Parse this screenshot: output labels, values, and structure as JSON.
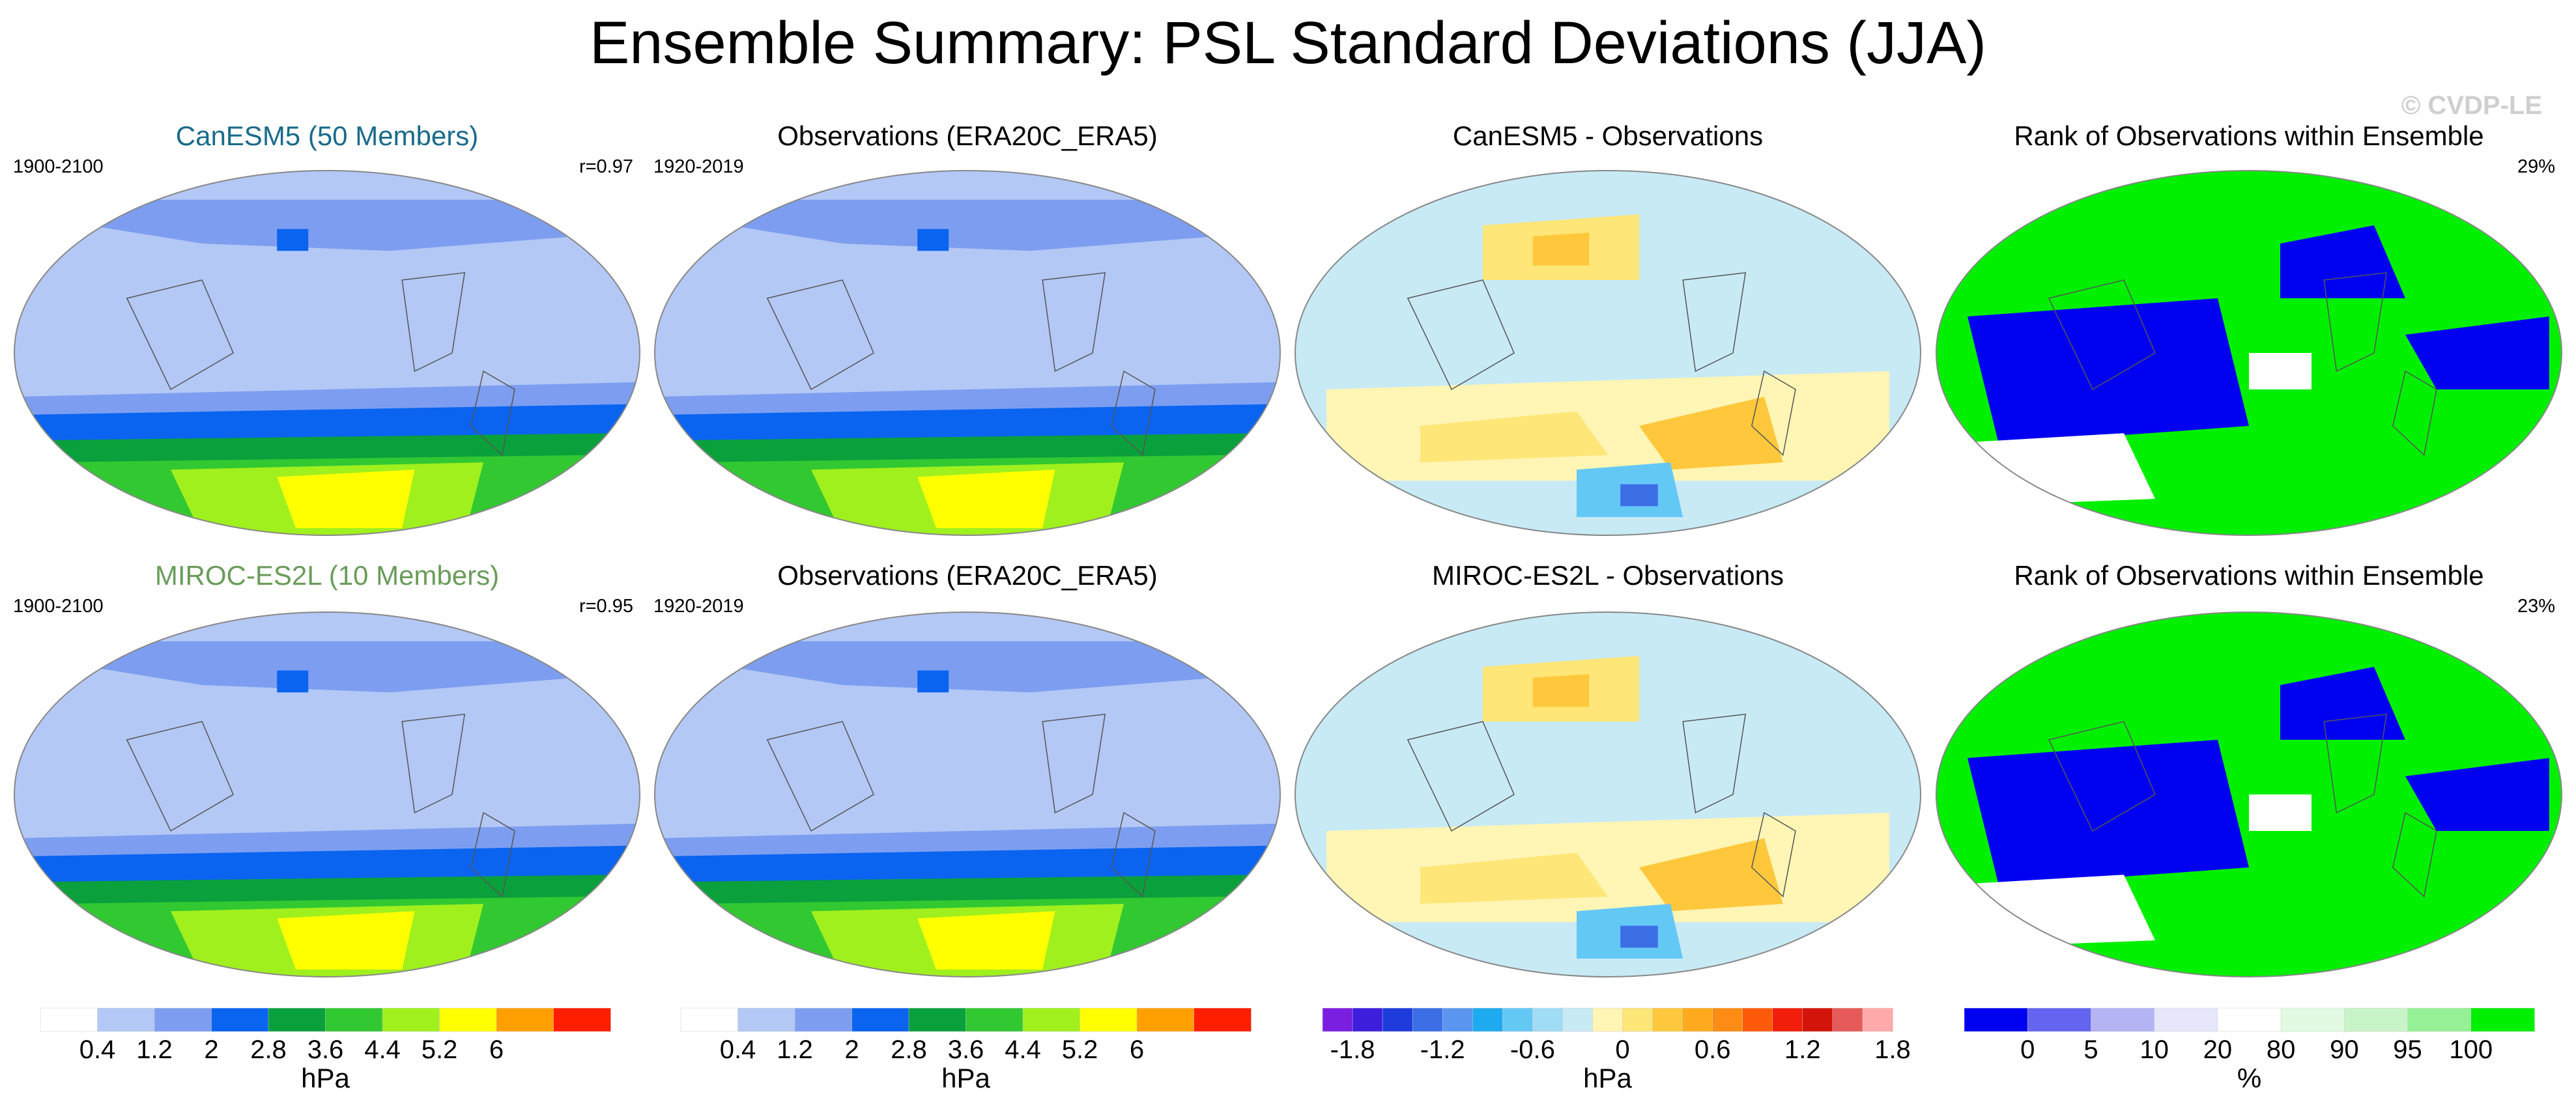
{
  "title": "Ensemble Summary: PSL Standard Deviations (JJA)",
  "watermark": "© CVDP-LE",
  "panels": [
    {
      "title": "CanESM5 (50 Members)",
      "title_color": "#1a6b8a",
      "left": "1900-2100",
      "right": "r=0.97"
    },
    {
      "title": "Observations (ERA20C_ERA5)",
      "title_color": "#000000",
      "left": "1920-2019",
      "right": ""
    },
    {
      "title": "CanESM5 - Observations",
      "title_color": "#000000",
      "left": "",
      "right": ""
    },
    {
      "title": "Rank of Observations within Ensemble",
      "title_color": "#000000",
      "left": "",
      "right": "29%"
    },
    {
      "title": "MIROC-ES2L (10 Members)",
      "title_color": "#6a9c5a",
      "left": "1900-2100",
      "right": "r=0.95"
    },
    {
      "title": "Observations (ERA20C_ERA5)",
      "title_color": "#000000",
      "left": "1920-2019",
      "right": ""
    },
    {
      "title": "MIROC-ES2L - Observations",
      "title_color": "#000000",
      "left": "",
      "right": ""
    },
    {
      "title": "Rank of Observations within Ensemble",
      "title_color": "#000000",
      "left": "",
      "right": "23%"
    }
  ],
  "colorbars": [
    {
      "unit": "hPa",
      "colors": [
        "#ffffff",
        "#b4c8f5",
        "#7d9ef0",
        "#0a64f0",
        "#0aa03c",
        "#32c832",
        "#a0f01e",
        "#ffff00",
        "#ffa000",
        "#ff1e00"
      ],
      "ticks": [
        "0.4",
        "1.2",
        "2",
        "2.8",
        "3.6",
        "4.4",
        "5.2",
        "6"
      ]
    },
    {
      "unit": "hPa",
      "colors": [
        "#ffffff",
        "#b4c8f5",
        "#7d9ef0",
        "#0a64f0",
        "#0aa03c",
        "#32c832",
        "#a0f01e",
        "#ffff00",
        "#ffa000",
        "#ff1e00"
      ],
      "ticks": [
        "0.4",
        "1.2",
        "2",
        "2.8",
        "3.6",
        "4.4",
        "5.2",
        "6"
      ]
    },
    {
      "unit": "hPa",
      "colors": [
        "#7a1ee0",
        "#3c1edc",
        "#1e3cdc",
        "#3c6ee6",
        "#5a96f0",
        "#1eaaf0",
        "#64c8f5",
        "#a0dcf5",
        "#c8eaf5",
        "#fff5b4",
        "#ffe678",
        "#ffc83c",
        "#ffaa1e",
        "#ff8c14",
        "#ff5a0a",
        "#f01e0a",
        "#d2140a",
        "#e65a5a",
        "#ffaaaa"
      ],
      "ticks": [
        "-1.8",
        "-1.2",
        "-0.6",
        "0",
        "0.6",
        "1.2",
        "1.8"
      ]
    },
    {
      "unit": "%",
      "colors": [
        "#0000f0",
        "#6464f0",
        "#b4b4f5",
        "#e6e6fa",
        "#ffffff",
        "#e1fae1",
        "#c8f5c8",
        "#96f096",
        "#00f000"
      ],
      "ticks": [
        "0",
        "5",
        "10",
        "20",
        "80",
        "90",
        "95",
        "100"
      ]
    }
  ]
}
